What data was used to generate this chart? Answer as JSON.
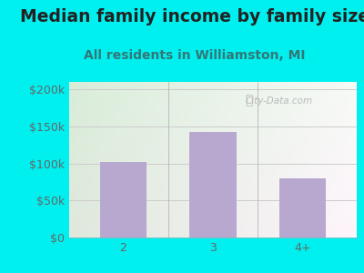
{
  "title": "Median family income by family size",
  "subtitle": "All residents in Williamston, MI",
  "categories": [
    "2",
    "3",
    "4+"
  ],
  "values": [
    102000,
    143000,
    80000
  ],
  "bar_color": "#b8a8d0",
  "yticks": [
    0,
    50000,
    100000,
    150000,
    200000
  ],
  "ytick_labels": [
    "$0",
    "$50k",
    "$100k",
    "$150k",
    "$200k"
  ],
  "ylim": [
    0,
    210000
  ],
  "title_fontsize": 13.5,
  "subtitle_fontsize": 10,
  "tick_fontsize": 9,
  "bg_outer": "#00f0f0",
  "watermark": "City-Data.com",
  "title_color": "#222222",
  "subtitle_color": "#337777",
  "axis_label_color": "#666666",
  "grid_color": "#cccccc",
  "plot_bg_colors": [
    "#dff0df",
    "#f0f0e8",
    "#e8f5e8",
    "#f8f8f0"
  ]
}
